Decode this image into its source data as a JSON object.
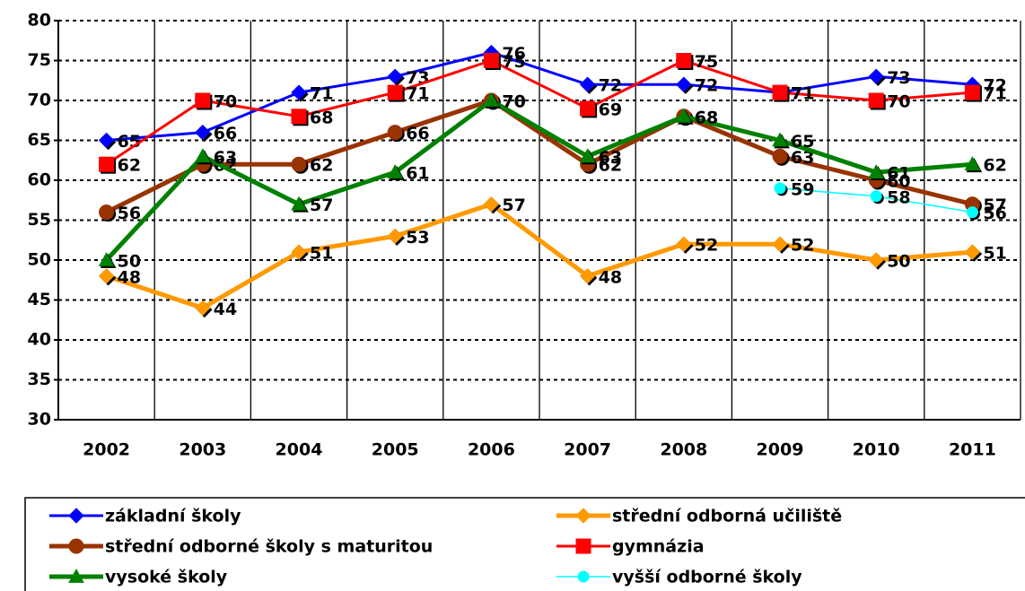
{
  "chart_data": {
    "type": "line",
    "categories": [
      "2002",
      "2003",
      "2004",
      "2005",
      "2006",
      "2007",
      "2008",
      "2009",
      "2010",
      "2011"
    ],
    "ylim": [
      30,
      80
    ],
    "yticks": [
      30,
      35,
      40,
      45,
      50,
      55,
      60,
      65,
      70,
      75,
      80
    ],
    "grid": true,
    "series": [
      {
        "name": "základní školy",
        "color": "#0000ff",
        "marker": "diamond",
        "values": [
          65,
          66,
          71,
          73,
          76,
          72,
          72,
          71,
          73,
          72
        ]
      },
      {
        "name": "střední odborná učiliště",
        "color": "#ff9900",
        "marker": "diamond",
        "values": [
          48,
          44,
          51,
          53,
          57,
          48,
          52,
          52,
          50,
          51
        ]
      },
      {
        "name": "střední odborné školy s maturitou",
        "color": "#993300",
        "marker": "circle",
        "values": [
          56,
          62,
          62,
          66,
          70,
          62,
          68,
          63,
          60,
          57
        ]
      },
      {
        "name": "gymnázia",
        "color": "#ff0000",
        "marker": "square",
        "values": [
          62,
          70,
          68,
          71,
          75,
          69,
          75,
          71,
          70,
          71
        ]
      },
      {
        "name": "vysoké školy",
        "color": "#008000",
        "marker": "triangle",
        "values": [
          50,
          63,
          57,
          61,
          70,
          63,
          68,
          65,
          61,
          62
        ]
      },
      {
        "name": "vyšší odborné školy",
        "color": "#00ffff",
        "marker": "circle",
        "values": [
          null,
          null,
          null,
          null,
          null,
          null,
          null,
          59,
          58,
          56
        ]
      }
    ]
  }
}
